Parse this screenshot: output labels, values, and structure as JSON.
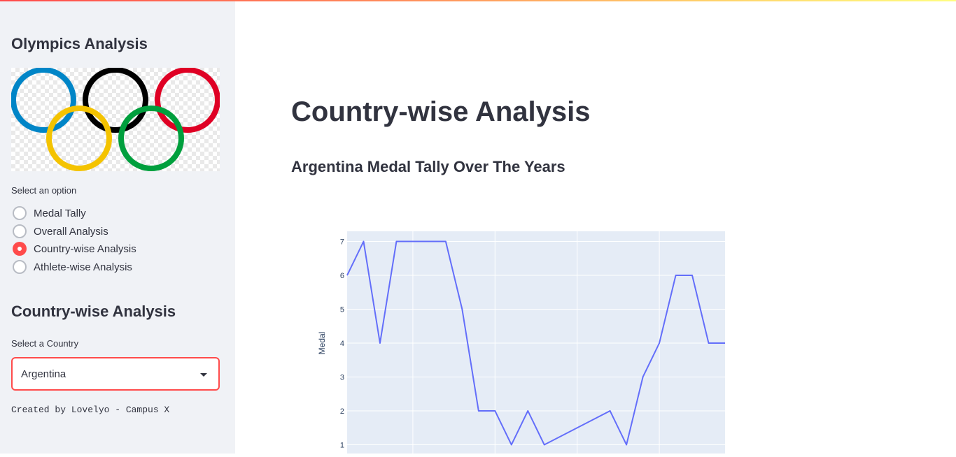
{
  "sidebar": {
    "title": "Olympics Analysis",
    "logo_colors": [
      "#0085c7",
      "#000000",
      "#df0024",
      "#f4c300",
      "#009f3d"
    ],
    "radio_label": "Select an option",
    "options": [
      {
        "label": "Medal Tally",
        "selected": false
      },
      {
        "label": "Overall Analysis",
        "selected": false
      },
      {
        "label": "Country-wise Analysis",
        "selected": true
      },
      {
        "label": "Athlete-wise Analysis",
        "selected": false
      }
    ],
    "section_title": "Country-wise Analysis",
    "country_label": "Select a Country",
    "country_value": "Argentina",
    "credit": "Created by Lovelyo - Campus X"
  },
  "main": {
    "title": "Country-wise Analysis",
    "subtitle": "Argentina Medal Tally Over The Years"
  },
  "colors": {
    "accent": "#ff4b4b",
    "line": "#636efa",
    "plot_bg": "#e5ecf6"
  },
  "chart_data": {
    "type": "line",
    "title": "",
    "xlabel": "",
    "ylabel": "Medal",
    "x": [
      1924,
      1928,
      1932,
      1936,
      1948,
      1952,
      1956,
      1960,
      1964,
      1968,
      1972,
      1988,
      1992,
      1996,
      2000,
      2004,
      2008,
      2012,
      2016
    ],
    "y": [
      6,
      7,
      4,
      7,
      7,
      5,
      2,
      2,
      1,
      2,
      1,
      2,
      1,
      3,
      4,
      6,
      6,
      4,
      4
    ],
    "xlim": [
      1924,
      2016
    ],
    "ylim": [
      0.7,
      7.3
    ],
    "yticks": [
      1,
      2,
      3,
      4,
      5,
      6,
      7
    ],
    "xticks": [
      1940,
      1960,
      1980,
      2000
    ],
    "grid": true,
    "legend": "none"
  }
}
